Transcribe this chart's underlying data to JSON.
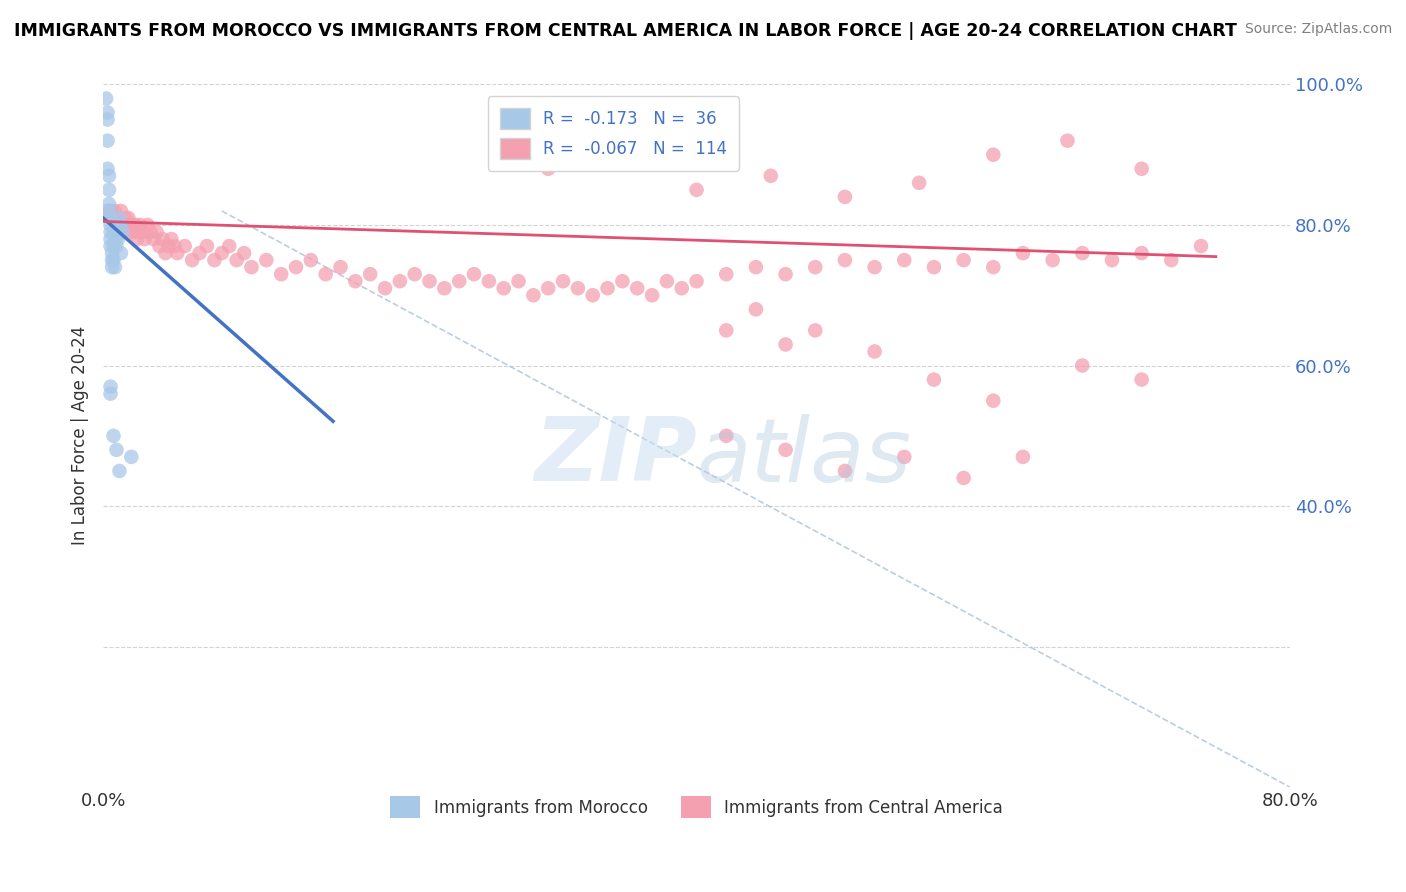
{
  "title": "IMMIGRANTS FROM MOROCCO VS IMMIGRANTS FROM CENTRAL AMERICA IN LABOR FORCE | AGE 20-24 CORRELATION CHART",
  "source": "Source: ZipAtlas.com",
  "ylabel": "In Labor Force | Age 20-24",
  "xlim": [
    0.0,
    0.8
  ],
  "ylim": [
    0.0,
    1.0
  ],
  "legend_r1": "-0.173",
  "legend_n1": "36",
  "legend_r2": "-0.067",
  "legend_n2": "114",
  "color_morocco": "#a8c8e8",
  "color_central": "#f4a0b0",
  "color_morocco_line": "#4472c4",
  "color_central_line": "#e05070",
  "color_dashed": "#a0b8d8",
  "watermark_color": "#c8ddf0",
  "morocco_x": [
    0.002,
    0.003,
    0.003,
    0.003,
    0.003,
    0.004,
    0.004,
    0.004,
    0.004,
    0.005,
    0.005,
    0.005,
    0.005,
    0.005,
    0.006,
    0.006,
    0.006,
    0.007,
    0.007,
    0.007,
    0.008,
    0.008,
    0.009,
    0.009,
    0.01,
    0.01,
    0.011,
    0.012,
    0.012,
    0.013,
    0.005,
    0.007,
    0.009,
    0.011,
    0.019,
    0.005
  ],
  "morocco_y": [
    0.98,
    0.96,
    0.95,
    0.92,
    0.88,
    0.87,
    0.85,
    0.83,
    0.82,
    0.81,
    0.8,
    0.79,
    0.78,
    0.77,
    0.76,
    0.75,
    0.74,
    0.79,
    0.77,
    0.75,
    0.78,
    0.74,
    0.8,
    0.77,
    0.8,
    0.78,
    0.81,
    0.8,
    0.76,
    0.79,
    0.56,
    0.5,
    0.48,
    0.45,
    0.47,
    0.57
  ],
  "central_x": [
    0.003,
    0.005,
    0.007,
    0.008,
    0.01,
    0.011,
    0.012,
    0.013,
    0.014,
    0.015,
    0.016,
    0.017,
    0.018,
    0.019,
    0.02,
    0.021,
    0.022,
    0.023,
    0.024,
    0.025,
    0.027,
    0.028,
    0.03,
    0.032,
    0.034,
    0.036,
    0.038,
    0.04,
    0.042,
    0.044,
    0.046,
    0.048,
    0.05,
    0.055,
    0.06,
    0.065,
    0.07,
    0.075,
    0.08,
    0.085,
    0.09,
    0.095,
    0.1,
    0.11,
    0.12,
    0.13,
    0.14,
    0.15,
    0.16,
    0.17,
    0.18,
    0.19,
    0.2,
    0.21,
    0.22,
    0.23,
    0.24,
    0.25,
    0.26,
    0.27,
    0.28,
    0.29,
    0.3,
    0.31,
    0.32,
    0.33,
    0.34,
    0.35,
    0.36,
    0.37,
    0.38,
    0.39,
    0.4,
    0.42,
    0.44,
    0.46,
    0.48,
    0.5,
    0.52,
    0.54,
    0.56,
    0.58,
    0.6,
    0.62,
    0.64,
    0.66,
    0.68,
    0.7,
    0.72,
    0.74,
    0.44,
    0.48,
    0.52,
    0.56,
    0.6,
    0.3,
    0.35,
    0.4,
    0.45,
    0.5,
    0.55,
    0.6,
    0.65,
    0.7,
    0.42,
    0.46,
    0.5,
    0.54,
    0.58,
    0.62,
    0.66,
    0.7,
    0.42,
    0.46
  ],
  "central_y": [
    0.82,
    0.82,
    0.81,
    0.82,
    0.8,
    0.81,
    0.82,
    0.79,
    0.8,
    0.81,
    0.8,
    0.81,
    0.79,
    0.8,
    0.8,
    0.79,
    0.8,
    0.78,
    0.79,
    0.8,
    0.79,
    0.78,
    0.8,
    0.79,
    0.78,
    0.79,
    0.77,
    0.78,
    0.76,
    0.77,
    0.78,
    0.77,
    0.76,
    0.77,
    0.75,
    0.76,
    0.77,
    0.75,
    0.76,
    0.77,
    0.75,
    0.76,
    0.74,
    0.75,
    0.73,
    0.74,
    0.75,
    0.73,
    0.74,
    0.72,
    0.73,
    0.71,
    0.72,
    0.73,
    0.72,
    0.71,
    0.72,
    0.73,
    0.72,
    0.71,
    0.72,
    0.7,
    0.71,
    0.72,
    0.71,
    0.7,
    0.71,
    0.72,
    0.71,
    0.7,
    0.72,
    0.71,
    0.72,
    0.73,
    0.74,
    0.73,
    0.74,
    0.75,
    0.74,
    0.75,
    0.74,
    0.75,
    0.74,
    0.76,
    0.75,
    0.76,
    0.75,
    0.76,
    0.75,
    0.77,
    0.68,
    0.65,
    0.62,
    0.58,
    0.55,
    0.88,
    0.91,
    0.85,
    0.87,
    0.84,
    0.86,
    0.9,
    0.92,
    0.88,
    0.5,
    0.48,
    0.45,
    0.47,
    0.44,
    0.47,
    0.6,
    0.58,
    0.65,
    0.63
  ]
}
